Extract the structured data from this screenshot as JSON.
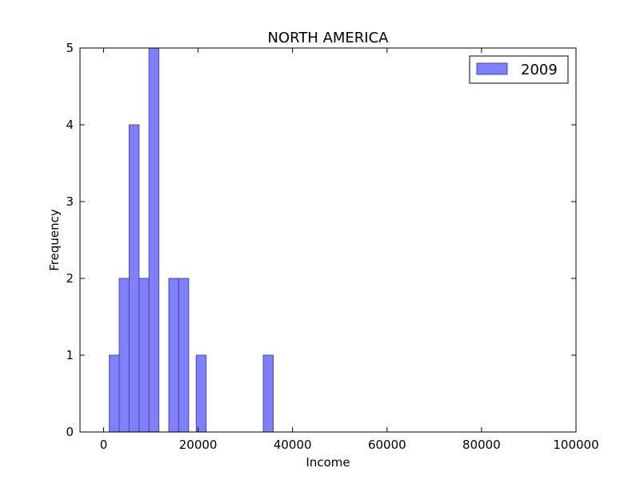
{
  "chart_data": {
    "type": "bar",
    "title": "NORTH AMERICA",
    "xlabel": "Income",
    "ylabel": "Frequency",
    "xlim": [
      -5000,
      100000
    ],
    "ylim": [
      0,
      5
    ],
    "xticks": [
      0,
      20000,
      40000,
      60000,
      80000,
      100000
    ],
    "xtick_labels": [
      "0",
      "20000",
      "40000",
      "60000",
      "80000",
      "100000"
    ],
    "yticks": [
      0,
      1,
      2,
      3,
      4,
      5
    ],
    "ytick_labels": [
      "0",
      "1",
      "2",
      "3",
      "4",
      "5"
    ],
    "grid": false,
    "legend_position": "top-right",
    "series": [
      {
        "name": "2009",
        "color": "#8080ff",
        "edge_color": "#4a4a99",
        "bins": [
          {
            "start": 1200,
            "end": 3300,
            "count": 1
          },
          {
            "start": 3300,
            "end": 5400,
            "count": 2
          },
          {
            "start": 5400,
            "end": 7500,
            "count": 4
          },
          {
            "start": 7500,
            "end": 9600,
            "count": 2
          },
          {
            "start": 9600,
            "end": 11700,
            "count": 5
          },
          {
            "start": 13800,
            "end": 15900,
            "count": 2
          },
          {
            "start": 15900,
            "end": 18000,
            "count": 2
          },
          {
            "start": 19600,
            "end": 21700,
            "count": 1
          },
          {
            "start": 33800,
            "end": 35900,
            "count": 1
          }
        ]
      }
    ]
  }
}
